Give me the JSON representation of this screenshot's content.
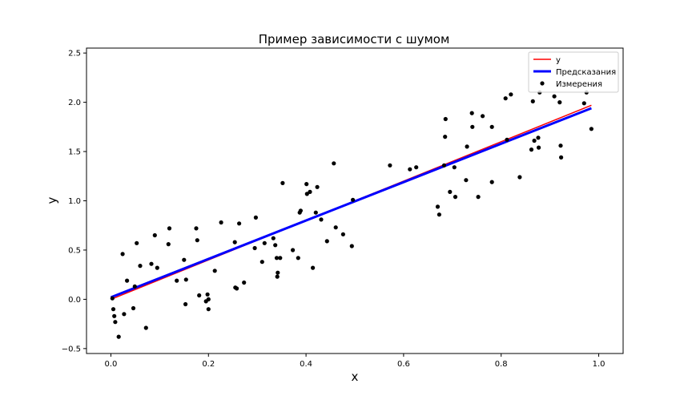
{
  "chart_data": {
    "type": "scatter",
    "title": "Пример зависимости с шумом",
    "xlabel": "x",
    "ylabel": "y",
    "xlim": [
      -0.05,
      1.05
    ],
    "ylim": [
      -0.55,
      2.55
    ],
    "xticks": [
      0.0,
      0.2,
      0.4,
      0.6,
      0.8,
      1.0
    ],
    "xtick_labels": [
      "0.0",
      "0.2",
      "0.4",
      "0.6",
      "0.8",
      "1.0"
    ],
    "yticks": [
      -0.5,
      0.0,
      0.5,
      1.0,
      1.5,
      2.0,
      2.5
    ],
    "ytick_labels": [
      "−0.5",
      "0.0",
      "0.5",
      "1.0",
      "1.5",
      "2.0",
      "2.5"
    ],
    "grid": false,
    "legend_position": "upper right",
    "lines": [
      {
        "name": "y",
        "color": "#ff0000",
        "x": [
          0.0,
          0.985
        ],
        "y": [
          0.0,
          1.97
        ]
      },
      {
        "name": "Предсказания",
        "color": "#0000ff",
        "x": [
          0.0,
          0.985
        ],
        "y": [
          0.02,
          1.94
        ]
      }
    ],
    "scatter": {
      "name": "Измерения",
      "color": "#000000",
      "points": [
        [
          0.003,
          0.01
        ],
        [
          0.005,
          -0.1
        ],
        [
          0.007,
          -0.17
        ],
        [
          0.009,
          -0.23
        ],
        [
          0.016,
          -0.38
        ],
        [
          0.024,
          0.46
        ],
        [
          0.027,
          -0.15
        ],
        [
          0.033,
          0.19
        ],
        [
          0.046,
          -0.09
        ],
        [
          0.049,
          0.13
        ],
        [
          0.053,
          0.57
        ],
        [
          0.06,
          0.34
        ],
        [
          0.072,
          -0.29
        ],
        [
          0.083,
          0.36
        ],
        [
          0.09,
          0.65
        ],
        [
          0.095,
          0.32
        ],
        [
          0.118,
          0.56
        ],
        [
          0.12,
          0.72
        ],
        [
          0.135,
          0.19
        ],
        [
          0.15,
          0.4
        ],
        [
          0.153,
          -0.05
        ],
        [
          0.154,
          0.2
        ],
        [
          0.175,
          0.72
        ],
        [
          0.177,
          0.6
        ],
        [
          0.181,
          0.04
        ],
        [
          0.195,
          -0.02
        ],
        [
          0.198,
          0.05
        ],
        [
          0.2,
          0.0
        ],
        [
          0.2,
          -0.1
        ],
        [
          0.213,
          0.29
        ],
        [
          0.226,
          0.78
        ],
        [
          0.254,
          0.58
        ],
        [
          0.255,
          0.12
        ],
        [
          0.258,
          0.11
        ],
        [
          0.263,
          0.77
        ],
        [
          0.273,
          0.17
        ],
        [
          0.295,
          0.52
        ],
        [
          0.297,
          0.83
        ],
        [
          0.31,
          0.38
        ],
        [
          0.315,
          0.57
        ],
        [
          0.333,
          0.62
        ],
        [
          0.337,
          0.55
        ],
        [
          0.34,
          0.42
        ],
        [
          0.341,
          0.23
        ],
        [
          0.342,
          0.27
        ],
        [
          0.347,
          0.42
        ],
        [
          0.352,
          1.18
        ],
        [
          0.373,
          0.5
        ],
        [
          0.384,
          0.42
        ],
        [
          0.387,
          0.88
        ],
        [
          0.389,
          0.9
        ],
        [
          0.401,
          1.17
        ],
        [
          0.402,
          1.07
        ],
        [
          0.408,
          1.09
        ],
        [
          0.414,
          0.32
        ],
        [
          0.42,
          0.88
        ],
        [
          0.423,
          1.14
        ],
        [
          0.431,
          0.81
        ],
        [
          0.443,
          0.59
        ],
        [
          0.457,
          1.38
        ],
        [
          0.461,
          0.73
        ],
        [
          0.476,
          0.66
        ],
        [
          0.494,
          0.54
        ],
        [
          0.496,
          1.01
        ],
        [
          0.572,
          1.36
        ],
        [
          0.613,
          1.32
        ],
        [
          0.626,
          1.34
        ],
        [
          0.67,
          0.94
        ],
        [
          0.673,
          0.86
        ],
        [
          0.683,
          1.36
        ],
        [
          0.685,
          1.65
        ],
        [
          0.686,
          1.83
        ],
        [
          0.695,
          1.09
        ],
        [
          0.704,
          1.34
        ],
        [
          0.706,
          1.04
        ],
        [
          0.728,
          1.21
        ],
        [
          0.73,
          1.55
        ],
        [
          0.74,
          1.89
        ],
        [
          0.741,
          1.75
        ],
        [
          0.753,
          1.04
        ],
        [
          0.762,
          1.86
        ],
        [
          0.781,
          1.19
        ],
        [
          0.781,
          1.75
        ],
        [
          0.809,
          2.04
        ],
        [
          0.812,
          1.62
        ],
        [
          0.82,
          2.08
        ],
        [
          0.838,
          1.24
        ],
        [
          0.862,
          1.52
        ],
        [
          0.865,
          2.01
        ],
        [
          0.868,
          1.61
        ],
        [
          0.876,
          1.64
        ],
        [
          0.877,
          1.54
        ],
        [
          0.879,
          2.1
        ],
        [
          0.909,
          2.06
        ],
        [
          0.92,
          2.0
        ],
        [
          0.922,
          1.56
        ],
        [
          0.923,
          1.44
        ],
        [
          0.97,
          1.99
        ],
        [
          0.975,
          2.1
        ],
        [
          0.985,
          1.73
        ]
      ]
    }
  }
}
